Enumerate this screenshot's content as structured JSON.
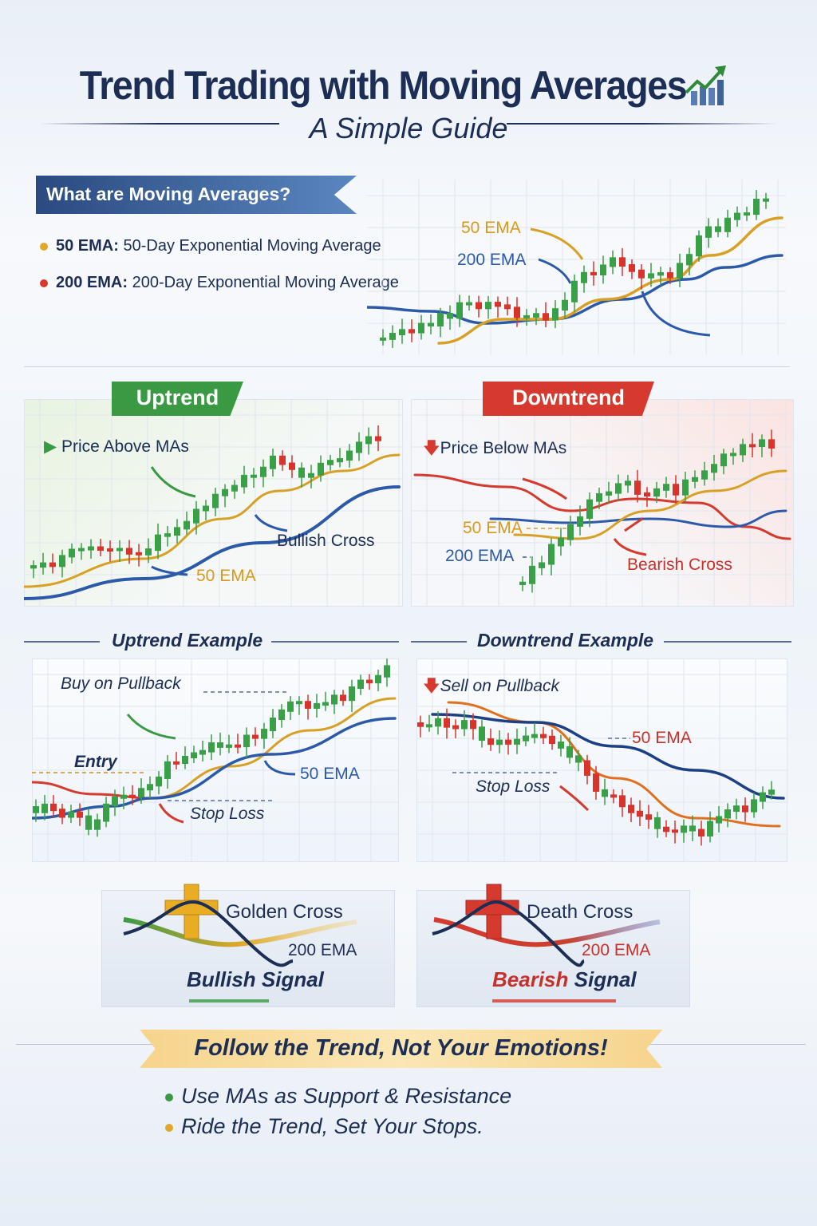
{
  "header": {
    "title": "Trend Trading with Moving Averages",
    "subtitle": "A Simple Guide",
    "icon": "bar-chart-up-arrow-icon"
  },
  "intro": {
    "heading": "What are Moving Averages?",
    "items": [
      {
        "term": "50 EMA:",
        "desc": "50-Day Exponential Moving Average",
        "color": "#e0a82a"
      },
      {
        "term": "200 EMA:",
        "desc": "200-Day Exponential Moving Average",
        "color": "#d63a2e"
      }
    ],
    "chart_labels": {
      "ema50": "50 EMA",
      "ema200": "200 EMA"
    }
  },
  "uptrend": {
    "tag": "Uptrend",
    "note": "Price Above MAs",
    "cross": "Bullish Cross",
    "ema": "50 EMA",
    "color": "#3a9a44"
  },
  "downtrend": {
    "tag": "Downtrend",
    "note": "Price Below MAs",
    "ema50": "50 EMA",
    "ema200": "200 EMA",
    "cross": "Bearish Cross",
    "color": "#d63a2e"
  },
  "uptrend_example": {
    "title": "Uptrend Example",
    "note": "Buy on Pullback",
    "entry": "Entry",
    "ema": "50 EMA",
    "stop": "Stop Loss"
  },
  "downtrend_example": {
    "title": "Downtrend Example",
    "note": "Sell on Pullback",
    "ema": "50 EMA",
    "stop": "Stop Loss"
  },
  "golden_cross": {
    "title": "Golden Cross",
    "ema": "200 EMA",
    "signal": "Bullish Signal"
  },
  "death_cross": {
    "title": "Death Cross",
    "ema": "200 EMA",
    "signal_word": "Bearish",
    "signal_rest": "Signal"
  },
  "footer": {
    "slogan": "Follow the Trend, Not Your Emotions!",
    "tips": [
      {
        "text": "Use MAs as Support & Resistance",
        "color": "#3a9a44"
      },
      {
        "text": "Ride the Trend, Set Your Stops.",
        "color": "#e0a82a"
      }
    ]
  },
  "colors": {
    "navy": "#1c2e55",
    "green": "#3a9a44",
    "red": "#d63a2e",
    "gold": "#e0a82a",
    "blue": "#2c5aa8"
  }
}
